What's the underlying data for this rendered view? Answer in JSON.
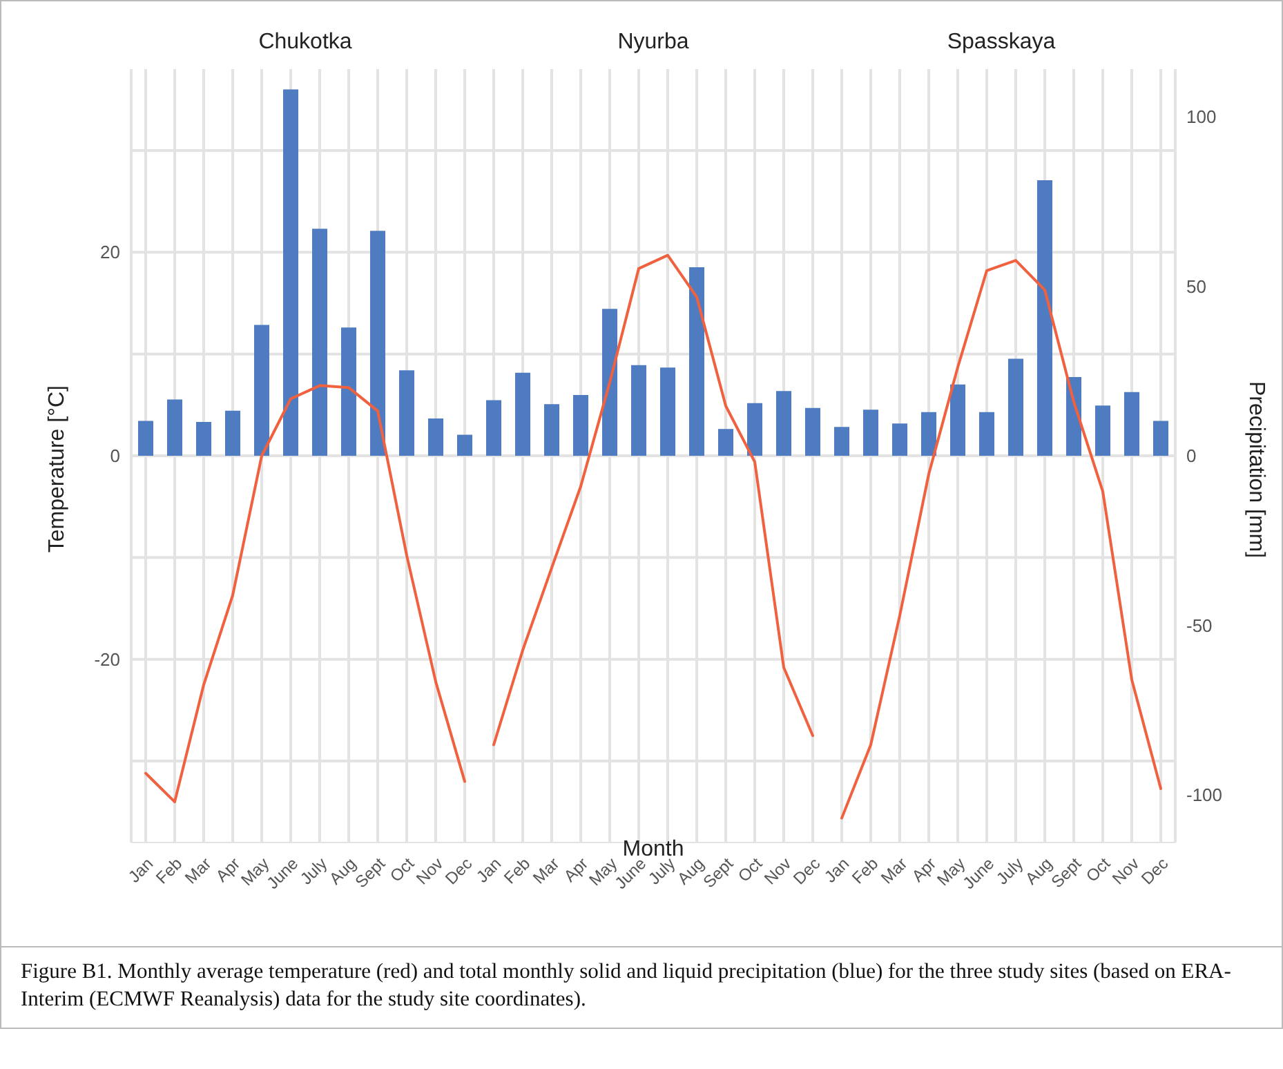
{
  "chart_data": {
    "type": "bar",
    "xlabel": "Month",
    "ylabel": "Temperature [°C]",
    "y2label": "Precipitation [mm]",
    "annotations": [
      "Chukotka",
      "Nyurba",
      "Spasskaya",
      "Figure B1. Monthly average temperature (red) and total monthly solid and liquid precipitation (blue) for the three study sites (based on ERA-Interim (ECMWF Reanalysis) data for the study site coordinates)."
    ],
    "categories": [
      "Jan",
      "Feb",
      "Mar",
      "Apr",
      "May",
      "June",
      "July",
      "Aug",
      "Sept",
      "Oct",
      "Nov",
      "Dec",
      "Jan",
      "Feb",
      "Mar",
      "Apr",
      "May",
      "June",
      "July",
      "Aug",
      "Sept",
      "Oct",
      "Nov",
      "Dec",
      "Jan",
      "Feb",
      "Mar",
      "Apr",
      "May",
      "June",
      "July",
      "Aug",
      "Sept",
      "Oct",
      "Nov",
      "Dec"
    ],
    "ylim": [
      -38,
      38
    ],
    "yticks": [
      {
        "value": -30,
        "label": null
      },
      -20,
      {
        "value": -10,
        "label": null
      },
      0,
      {
        "value": 10,
        "label": null
      },
      20,
      {
        "value": 30,
        "label": null
      }
    ],
    "y2lim": [
      -114,
      114
    ],
    "y2ticks": [
      -100,
      -50,
      0,
      50,
      100
    ],
    "grid": true,
    "series": [
      {
        "axis": "y2",
        "color": "#4f7bc0",
        "values": [
          10.3,
          16.6,
          10.0,
          13.3,
          38.6,
          108,
          66.9,
          37.8,
          66.3,
          25.2,
          11.0,
          6.2,
          16.4,
          24.5,
          15.2,
          17.9,
          43.3,
          26.7,
          26.0,
          55.6,
          7.9,
          15.5,
          19.1,
          14.1,
          8.5,
          13.6,
          9.5,
          12.9,
          21.0,
          12.9,
          28.6,
          81.2,
          23.2,
          14.8,
          18.8,
          10.3
        ]
      },
      {
        "type": "line",
        "axis": "y",
        "color": "#f0613f",
        "values": [
          -31.2,
          -34.0,
          -22.5,
          -13.7,
          0,
          5.6,
          6.9,
          6.7,
          4.4,
          -9.8,
          -22.2,
          -32.0,
          null,
          null,
          null,
          null,
          null,
          null,
          null,
          null,
          null,
          null,
          null,
          null,
          null,
          null,
          null,
          null,
          null,
          null,
          null,
          null,
          null,
          null,
          null,
          null
        ]
      },
      {
        "type": "line",
        "axis": "y",
        "color": "#f0613f",
        "values": [
          null,
          null,
          null,
          null,
          null,
          null,
          null,
          null,
          null,
          null,
          null,
          null,
          -28.4,
          -19.1,
          -11.0,
          -3.0,
          7.2,
          18.4,
          19.7,
          15.6,
          4.9,
          -0.6,
          -20.8,
          -27.5,
          null,
          null,
          null,
          null,
          null,
          null,
          null,
          null,
          null,
          null,
          null,
          null
        ]
      },
      {
        "type": "line",
        "axis": "y",
        "color": "#f0613f",
        "values": [
          null,
          null,
          null,
          null,
          null,
          null,
          null,
          null,
          null,
          null,
          null,
          null,
          null,
          null,
          null,
          null,
          null,
          null,
          null,
          null,
          null,
          null,
          null,
          null,
          -35.6,
          -28.4,
          -15.7,
          -1.8,
          8.7,
          18.2,
          19.2,
          16.3,
          5.3,
          -3.5,
          -22.0,
          -32.7
        ]
      }
    ]
  }
}
